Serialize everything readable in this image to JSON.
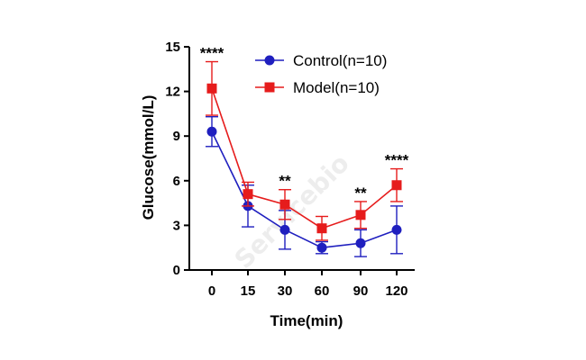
{
  "chart_data": {
    "type": "line",
    "xlabel": "Time(min)",
    "ylabel": "Glucose(mmol/L)",
    "categories": [
      "0",
      "15",
      "30",
      "60",
      "90",
      "120"
    ],
    "yticks": [
      "0",
      "3",
      "6",
      "9",
      "12",
      "15"
    ],
    "ylim": [
      0,
      15
    ],
    "grid": false,
    "legend_position": "top-right",
    "series": [
      {
        "name": "Control(n=10)",
        "color": "#1f1fbf",
        "marker": "circle",
        "values": [
          9.3,
          4.3,
          2.7,
          1.5,
          1.8,
          2.7
        ],
        "errors": [
          1.0,
          1.4,
          1.3,
          0.4,
          0.9,
          1.6
        ]
      },
      {
        "name": "Model(n=10)",
        "color": "#e61c1c",
        "marker": "square",
        "values": [
          12.2,
          5.1,
          4.4,
          2.8,
          3.7,
          5.7
        ],
        "errors": [
          1.8,
          0.8,
          1.0,
          0.8,
          0.9,
          1.1
        ]
      }
    ],
    "annotations": [
      {
        "category": "0",
        "text": "****"
      },
      {
        "category": "30",
        "text": "**"
      },
      {
        "category": "90",
        "text": "**"
      },
      {
        "category": "120",
        "text": "****"
      }
    ]
  },
  "watermark": "Servicebio"
}
